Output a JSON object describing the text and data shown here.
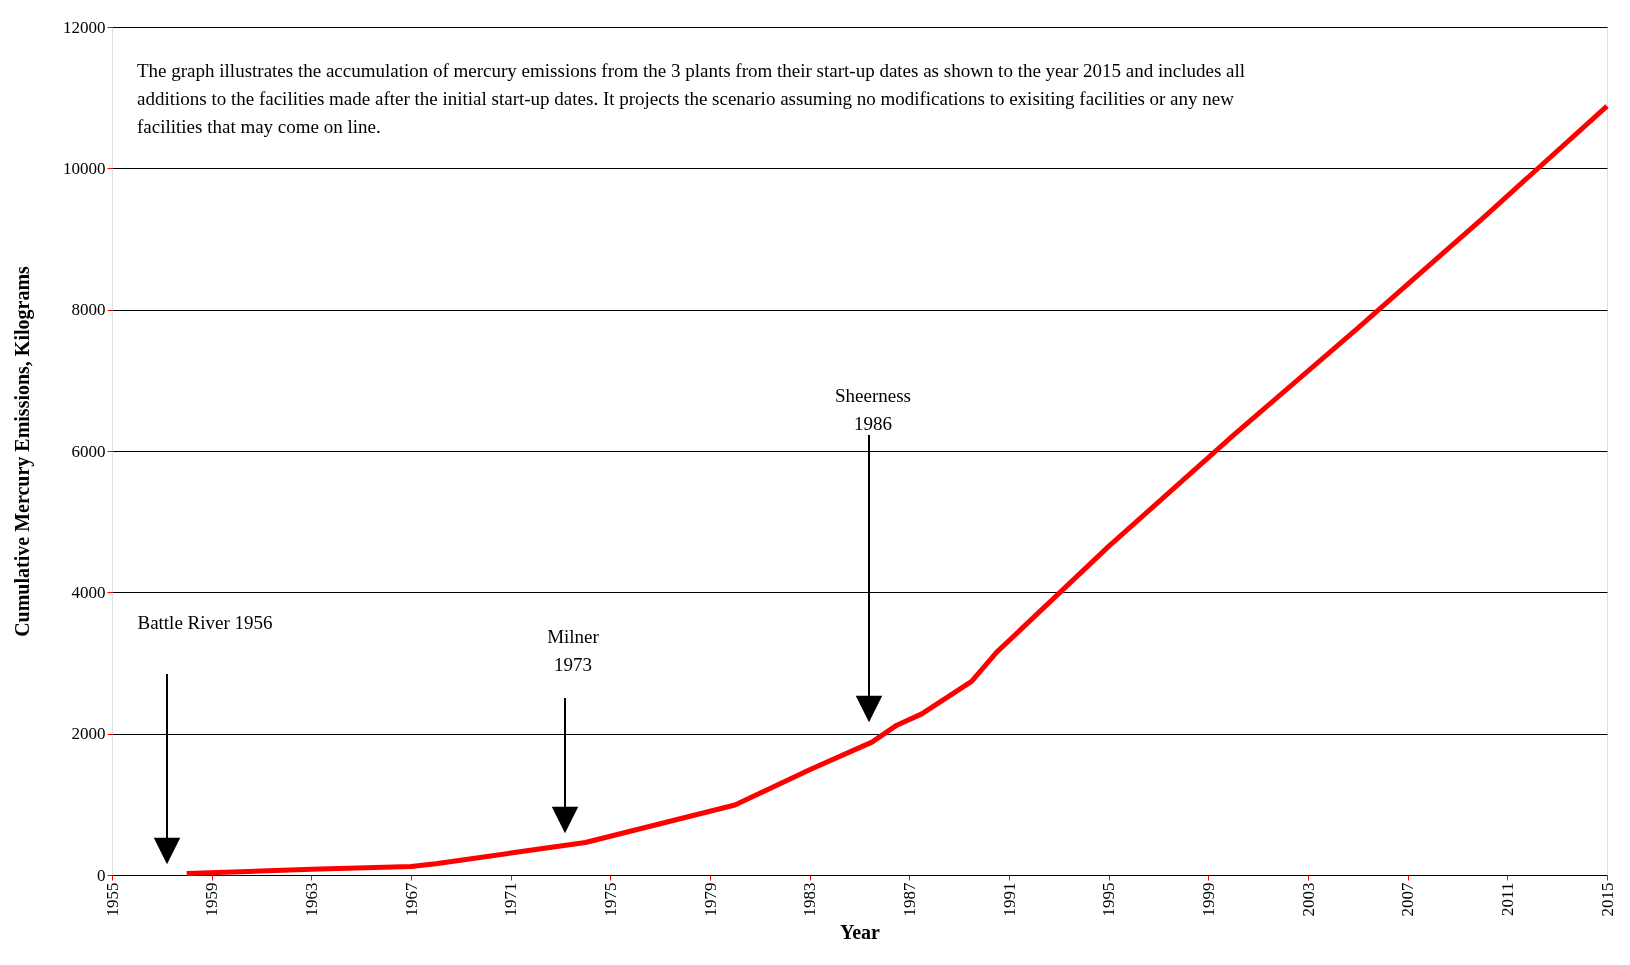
{
  "chart_data": {
    "type": "line",
    "xlabel": "Year",
    "ylabel": "Cumulative Mercury Emissions, Kilograms",
    "x": [
      1958,
      1963,
      1967,
      1968,
      1971,
      1974,
      1980,
      1983,
      1985.5,
      1986.5,
      1987.5,
      1989.5,
      1990.5,
      1995,
      2000,
      2005,
      2010,
      2015
    ],
    "series": [
      {
        "color": "#ff0000",
        "values": [
          20,
          80,
          120,
          160,
          310,
          460,
          990,
          1490,
          1880,
          2120,
          2280,
          2740,
          3150,
          4650,
          6220,
          7740,
          9290,
          10880
        ]
      }
    ],
    "xlim": [
      1955,
      2015
    ],
    "xticks": [
      1955,
      1959,
      1963,
      1967,
      1971,
      1975,
      1979,
      1983,
      1987,
      1991,
      1995,
      1999,
      2003,
      2007,
      2011,
      2015
    ],
    "ylim": [
      0,
      12000
    ],
    "yticks": [
      0,
      2000,
      4000,
      6000,
      8000,
      10000,
      12000
    ],
    "grid": "y",
    "marker": "none",
    "line_style": "solid",
    "annotations": [
      "The graph illustrates the accumulation of mercury emissions from the 3 plants from their start-up dates as shown to the year 2015 and includes all\nadditions to the facilities made after the initial start-up dates. It projects the scenario assuming no modifications to exisiting facilities or any  new\nfacilities that may  come on line.",
      "Battle River 1956",
      "Milner\n1973",
      "Sheerness\n1986"
    ]
  }
}
